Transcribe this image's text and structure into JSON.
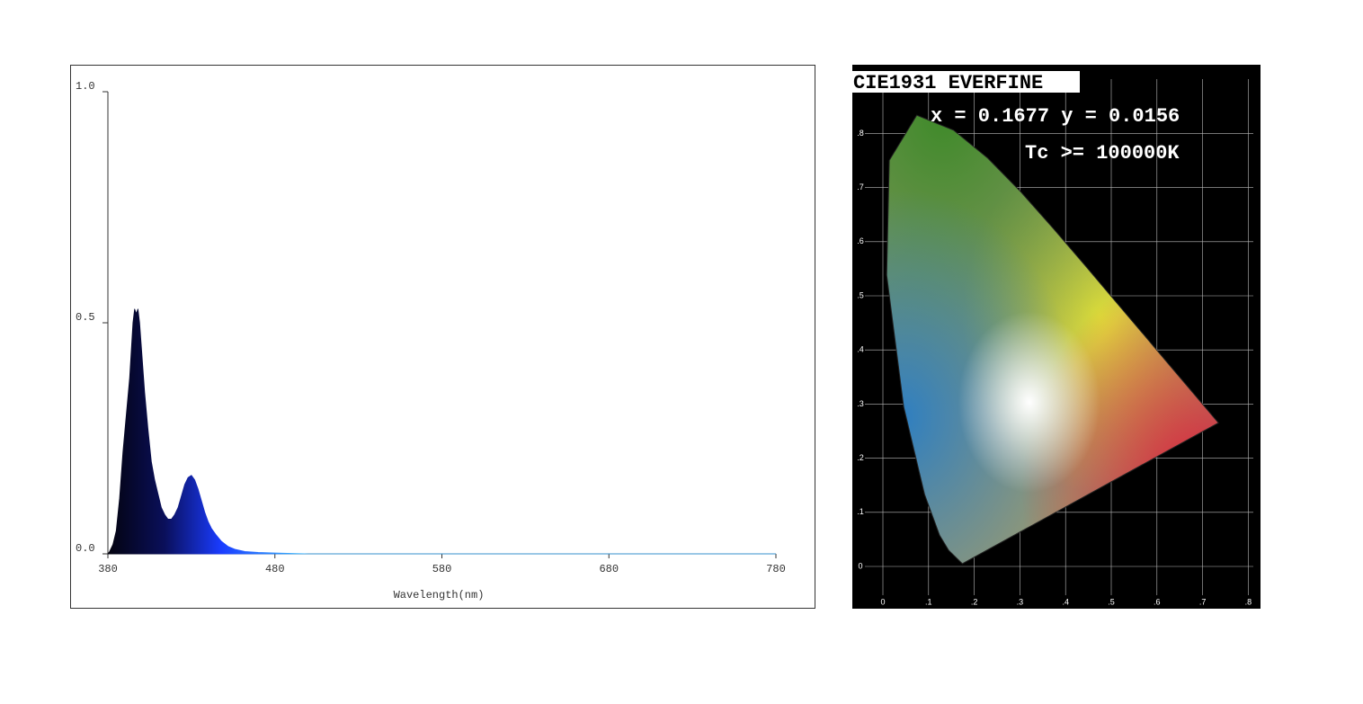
{
  "chart_data": {
    "type": "area",
    "xlabel": "Wavelength(nm)",
    "x": [
      380,
      381,
      383,
      385,
      387,
      389,
      391,
      393,
      394,
      395,
      396,
      397,
      398,
      399,
      400,
      401,
      402,
      404,
      406,
      408,
      410,
      412,
      414,
      416,
      418,
      420,
      422,
      424,
      426,
      428,
      430,
      432,
      434,
      436,
      438,
      440,
      442,
      445,
      448,
      452,
      456,
      462,
      470,
      480,
      490,
      500,
      600,
      700,
      780
    ],
    "values": [
      0,
      0.005,
      0.02,
      0.05,
      0.12,
      0.22,
      0.3,
      0.38,
      0.44,
      0.5,
      0.53,
      0.52,
      0.53,
      0.5,
      0.45,
      0.4,
      0.35,
      0.27,
      0.2,
      0.16,
      0.13,
      0.1,
      0.085,
      0.075,
      0.075,
      0.085,
      0.1,
      0.125,
      0.15,
      0.165,
      0.17,
      0.16,
      0.14,
      0.115,
      0.09,
      0.07,
      0.055,
      0.04,
      0.027,
      0.016,
      0.01,
      0.005,
      0.003,
      0.002,
      0.001,
      0,
      0,
      0,
      0
    ],
    "xlim": [
      380,
      780
    ],
    "xticks": [
      380,
      480,
      580,
      680,
      780
    ],
    "ylim": [
      0,
      1
    ],
    "yticks": [
      {
        "value": 0,
        "label": "0.0"
      },
      {
        "value": 0.5,
        "label": "0.5"
      },
      {
        "value": 1,
        "label": "1.0"
      }
    ]
  },
  "cie": {
    "title": "CIE1931 EVERFINE",
    "coordinates": "x = 0.1677 y = 0.0156",
    "cct": "Tc >= 100000K",
    "xtick_labels": [
      "0",
      ".1",
      ".2",
      ".3",
      ".4",
      ".5",
      ".6",
      ".7",
      ".8"
    ],
    "ytick_labels": [
      "0",
      ".1",
      ".2",
      ".3",
      ".4",
      ".5",
      ".6",
      ".7",
      ".8"
    ]
  }
}
